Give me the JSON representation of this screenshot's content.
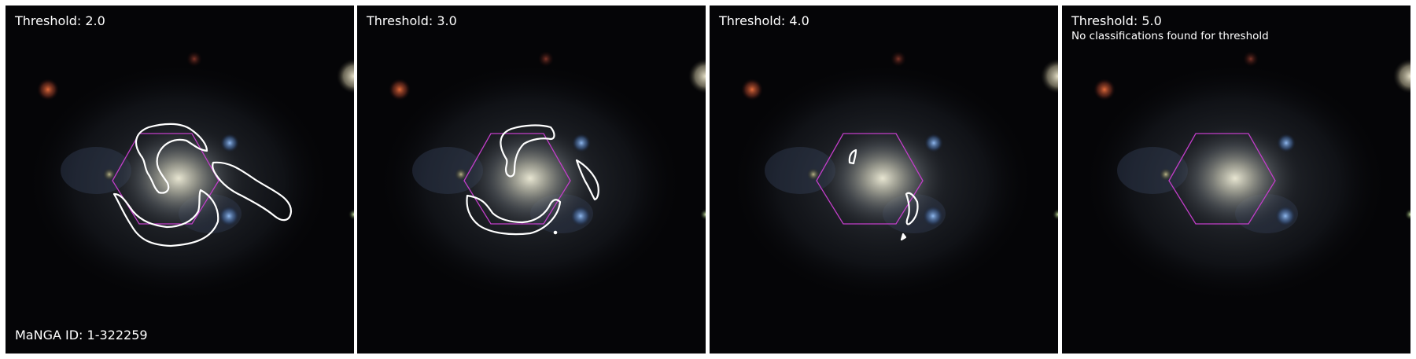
{
  "panels": [
    {
      "threshold_label": "Threshold: 2.0",
      "note": ""
    },
    {
      "threshold_label": "Threshold: 3.0",
      "note": ""
    },
    {
      "threshold_label": "Threshold: 4.0",
      "note": ""
    },
    {
      "threshold_label": "Threshold: 5.0",
      "note": "No classifications found for threshold"
    }
  ],
  "manga_id_label": "MaNGA ID: 1-322259",
  "colors": {
    "hexagon": "#c23ec9",
    "contour": "#ffffff",
    "background": "#050507"
  }
}
